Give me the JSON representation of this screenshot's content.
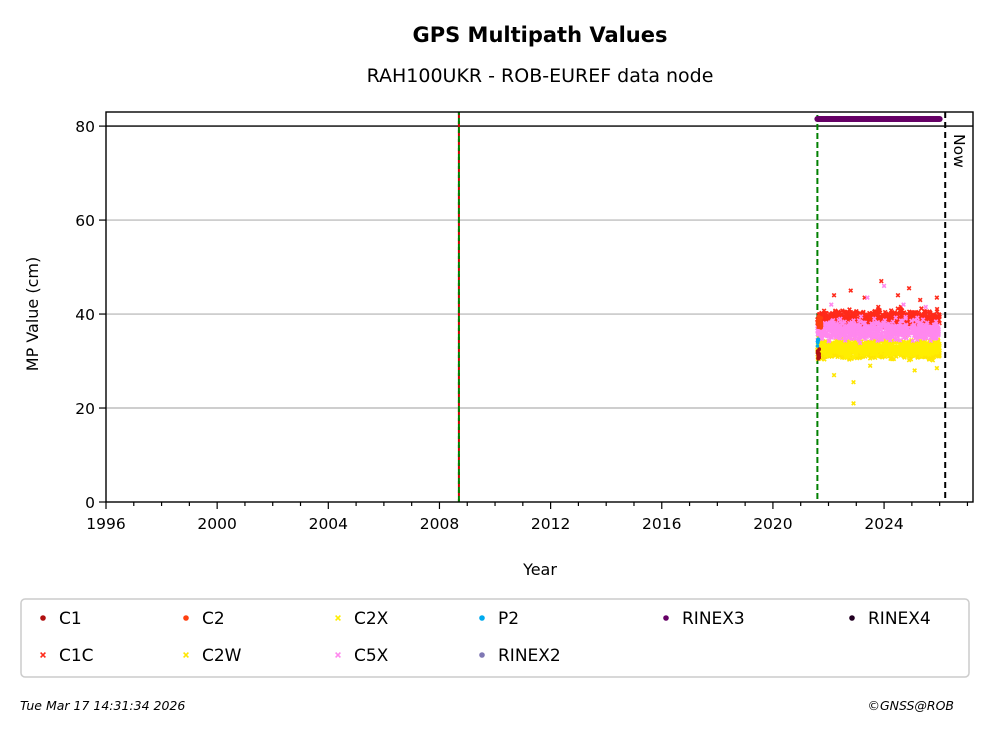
{
  "chart_data": {
    "type": "scatter",
    "title": "GPS Multipath Values",
    "subtitle": "RAH100UKR - ROB-EUREF data node",
    "xlabel": "Year",
    "ylabel": "MP Value (cm)",
    "xlim": [
      1996.0,
      2027.2
    ],
    "ylim": [
      0,
      83
    ],
    "xticks": [
      "1996",
      "2000",
      "2004",
      "2008",
      "2012",
      "2016",
      "2020",
      "2024"
    ],
    "yticks": [
      "0",
      "20",
      "40",
      "60",
      "80"
    ],
    "grid": "horizontal",
    "reference_line_y": 80,
    "now_label": "Now",
    "now_x": 2026.2,
    "vertical_lines": [
      {
        "x": 2008.7,
        "color": "#cc0000",
        "style": "dashed"
      },
      {
        "x": 2008.7,
        "color": "#008000",
        "style": "dashed"
      },
      {
        "x": 2021.6,
        "color": "#008000",
        "style": "dashed"
      }
    ],
    "rinex_bar": {
      "series": "RINEX3",
      "x_start": 2021.6,
      "x_end": 2026.0,
      "y": 81.5
    },
    "series": [
      {
        "name": "C1",
        "marker": "dot",
        "color": "#b01010",
        "x_range": [
          2021.6,
          2021.7
        ],
        "y_mean": 31.5,
        "y_spread": 1.0
      },
      {
        "name": "C1C",
        "marker": "cross",
        "color": "#ff2a1a",
        "x_range": [
          2021.6,
          2026.0
        ],
        "y_mean": 39.0,
        "y_spread": 1.6,
        "outliers": [
          [
            2022.8,
            45.0
          ],
          [
            2023.3,
            43.5
          ],
          [
            2023.9,
            47.0
          ],
          [
            2024.5,
            44.0
          ],
          [
            2024.9,
            45.5
          ],
          [
            2025.3,
            43.0
          ],
          [
            2025.9,
            43.5
          ],
          [
            2022.2,
            44.0
          ]
        ]
      },
      {
        "name": "C2",
        "marker": "dot",
        "color": "#ff4010",
        "x_range": [
          2021.6,
          2021.75
        ],
        "y_mean": 38.0,
        "y_spread": 1.2
      },
      {
        "name": "C2W",
        "marker": "cross",
        "color": "#ffe600",
        "x_range": [
          2021.6,
          2026.0
        ],
        "y_mean": 32.0,
        "y_spread": 1.3,
        "outliers": [
          [
            2022.9,
            21.0
          ],
          [
            2022.9,
            25.5
          ],
          [
            2022.2,
            27.0
          ],
          [
            2025.1,
            28.0
          ],
          [
            2025.9,
            28.5
          ],
          [
            2023.5,
            29.0
          ]
        ]
      },
      {
        "name": "C2X",
        "marker": "cross",
        "color": "#ffee00",
        "x_range": [
          2021.6,
          2026.0
        ],
        "y_mean": 33.0,
        "y_spread": 1.5
      },
      {
        "name": "C5X",
        "marker": "cross",
        "color": "#ff88ee",
        "x_range": [
          2021.6,
          2026.0
        ],
        "y_mean": 36.5,
        "y_spread": 1.8,
        "outliers": [
          [
            2022.1,
            42.0
          ],
          [
            2023.4,
            43.5
          ],
          [
            2024.0,
            46.0
          ],
          [
            2024.7,
            42.0
          ],
          [
            2025.5,
            41.5
          ]
        ]
      },
      {
        "name": "P2",
        "marker": "dot",
        "color": "#00aaee",
        "x_range": [
          2021.6,
          2021.65
        ],
        "y_mean": 34.0,
        "y_spread": 0.8
      },
      {
        "name": "RINEX2",
        "marker": "dot",
        "color": "#7f77b4",
        "x_range": [],
        "y_mean": null,
        "y_spread": 0
      },
      {
        "name": "RINEX3",
        "marker": "dot",
        "color": "#660066",
        "x_range": [
          2021.6,
          2026.0
        ],
        "y_mean": 81.5,
        "y_spread": 0
      },
      {
        "name": "RINEX4",
        "marker": "dot",
        "color": "#220022",
        "x_range": [],
        "y_mean": null,
        "y_spread": 0
      }
    ],
    "legend": {
      "placement": "bottom",
      "rows": [
        [
          {
            "label": "C1",
            "marker": "dot",
            "color": "#b01010"
          },
          {
            "label": "C2",
            "marker": "dot",
            "color": "#ff4010"
          },
          {
            "label": "C2X",
            "marker": "cross",
            "color": "#ffee00"
          },
          {
            "label": "P2",
            "marker": "dot",
            "color": "#00aaee"
          },
          {
            "label": "RINEX3",
            "marker": "dot",
            "color": "#660066"
          },
          {
            "label": "RINEX4",
            "marker": "dot",
            "color": "#220022"
          }
        ],
        [
          {
            "label": "C1C",
            "marker": "cross",
            "color": "#ff2a1a"
          },
          {
            "label": "C2W",
            "marker": "cross",
            "color": "#ffe600"
          },
          {
            "label": "C5X",
            "marker": "cross",
            "color": "#ff88ee"
          },
          {
            "label": "RINEX2",
            "marker": "dot",
            "color": "#7f77b4"
          }
        ]
      ]
    }
  },
  "footer": {
    "timestamp": "Tue Mar 17 14:31:34 2026",
    "copyright": "©GNSS@ROB"
  }
}
